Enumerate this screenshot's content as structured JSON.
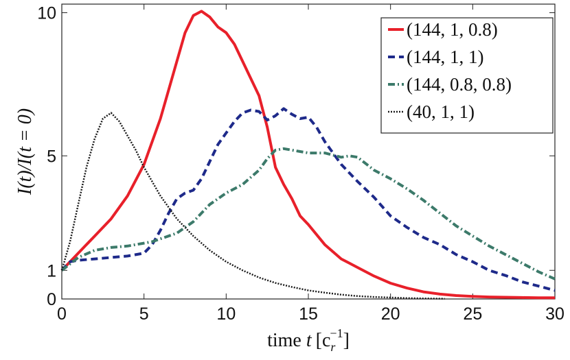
{
  "chart_data": {
    "type": "line",
    "xlabel_text": "time ",
    "xlabel_var": "t",
    "xlabel_units": "[c",
    "xlabel_sub": "r",
    "xlabel_sup": "−1",
    "xlabel_close": "]",
    "ylabel": "I(t)/I(t = 0)",
    "xlim": [
      0,
      30
    ],
    "ylim": [
      0,
      10.3
    ],
    "xticks": [
      0,
      5,
      10,
      15,
      20,
      25,
      30
    ],
    "yticks": [
      0,
      1,
      5,
      10
    ],
    "grid": false,
    "legend_position": "top-right",
    "series": [
      {
        "name": "(144, 1, 0.8)",
        "color": "#e8202a",
        "style": "solid",
        "x": [
          0,
          0.5,
          1,
          2,
          3,
          4,
          5,
          6,
          7,
          7.5,
          8,
          8.5,
          9,
          9.5,
          10,
          10.5,
          11,
          11.5,
          12,
          12.5,
          13,
          13.5,
          14,
          14.5,
          15,
          16,
          17,
          18,
          19,
          20,
          21,
          22,
          23,
          24,
          25,
          26,
          27,
          28,
          29,
          30
        ],
        "y": [
          1.0,
          1.3,
          1.6,
          2.2,
          2.8,
          3.6,
          4.7,
          6.3,
          8.3,
          9.3,
          9.9,
          10.05,
          9.85,
          9.5,
          9.3,
          8.9,
          8.3,
          7.7,
          7.1,
          6.0,
          4.6,
          4.0,
          3.5,
          2.9,
          2.6,
          1.9,
          1.4,
          1.1,
          0.8,
          0.55,
          0.38,
          0.25,
          0.17,
          0.12,
          0.09,
          0.07,
          0.06,
          0.05,
          0.04,
          0.04
        ]
      },
      {
        "name": "(144, 1, 1)",
        "color": "#1e2a8a",
        "style": "dashed",
        "x": [
          0,
          0.5,
          1,
          2,
          3,
          4,
          5,
          5.5,
          6,
          6.5,
          7,
          7.5,
          8,
          8.5,
          9,
          9.5,
          10,
          10.5,
          11,
          11.5,
          12,
          12.5,
          13,
          13.5,
          14,
          14.5,
          15,
          15.5,
          16,
          17,
          18,
          19,
          20,
          21,
          22,
          23,
          24,
          25,
          26,
          27,
          28,
          29,
          30
        ],
        "y": [
          1.0,
          1.3,
          1.35,
          1.4,
          1.45,
          1.5,
          1.6,
          1.9,
          2.4,
          3.0,
          3.5,
          3.7,
          3.8,
          4.2,
          4.8,
          5.4,
          5.8,
          6.2,
          6.5,
          6.6,
          6.55,
          6.25,
          6.4,
          6.65,
          6.45,
          6.3,
          6.35,
          6.0,
          5.5,
          4.7,
          4.1,
          3.55,
          2.9,
          2.5,
          2.15,
          1.9,
          1.55,
          1.3,
          1.0,
          0.82,
          0.6,
          0.45,
          0.3
        ]
      },
      {
        "name": "(144, 0.8, 0.8)",
        "color": "#3c7a6a",
        "style": "dashdot",
        "x": [
          0,
          1,
          2,
          3,
          4,
          5,
          5.5,
          6,
          7,
          8,
          9,
          10,
          11,
          12,
          12.5,
          13,
          13.5,
          14,
          15,
          16,
          17,
          17.5,
          18,
          19,
          20,
          21,
          22,
          23,
          24,
          25,
          26,
          27,
          28,
          29,
          30
        ],
        "y": [
          1.0,
          1.45,
          1.7,
          1.8,
          1.85,
          1.95,
          2.0,
          2.1,
          2.3,
          2.7,
          3.3,
          3.7,
          4.0,
          4.5,
          4.9,
          5.2,
          5.25,
          5.2,
          5.1,
          5.1,
          4.95,
          5.0,
          4.95,
          4.5,
          4.2,
          3.85,
          3.45,
          3.0,
          2.55,
          2.2,
          1.85,
          1.55,
          1.25,
          0.95,
          0.7
        ]
      },
      {
        "name": "(40, 1, 1)",
        "color": "#1a1a1a",
        "style": "dotted",
        "x": [
          0,
          0.5,
          1,
          1.5,
          2,
          2.5,
          3,
          3.5,
          4,
          4.5,
          5,
          5.5,
          6,
          7,
          8,
          9,
          10,
          11,
          12,
          13,
          14,
          15,
          16,
          17,
          18,
          19,
          20,
          21,
          22,
          23.3
        ],
        "y": [
          1.0,
          2.0,
          3.3,
          4.6,
          5.6,
          6.3,
          6.5,
          6.2,
          5.7,
          5.2,
          4.6,
          4.1,
          3.6,
          2.8,
          2.2,
          1.7,
          1.3,
          1.0,
          0.75,
          0.56,
          0.42,
          0.3,
          0.22,
          0.15,
          0.1,
          0.07,
          0.05,
          0.03,
          0.02,
          0.01
        ]
      }
    ]
  }
}
